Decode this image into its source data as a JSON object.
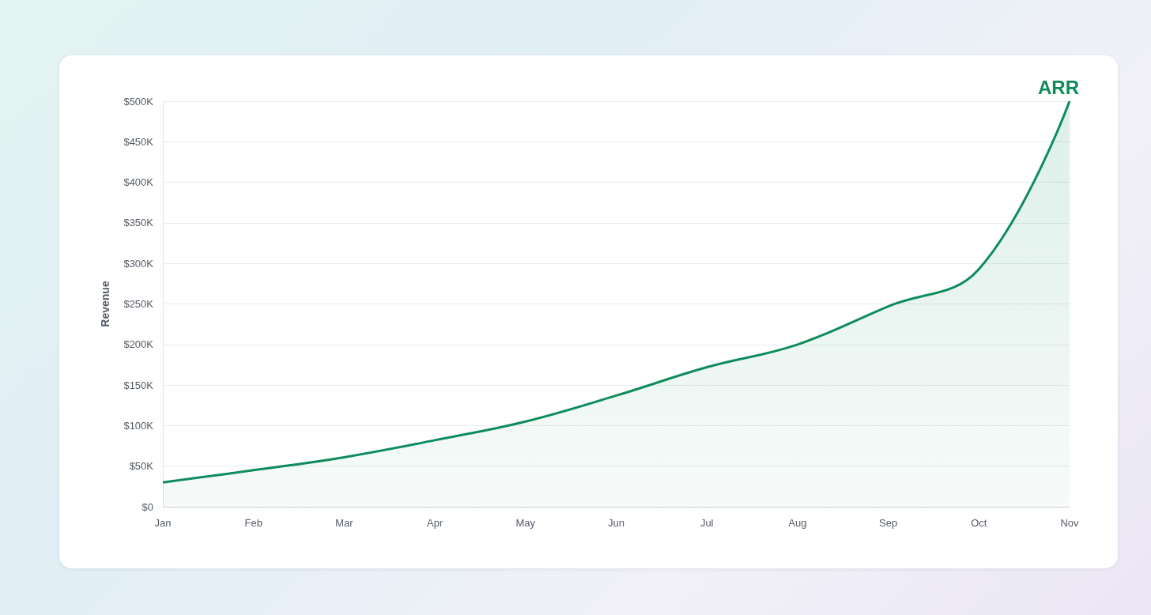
{
  "chart_data": {
    "type": "area",
    "ylabel": "Revenue",
    "categories": [
      "Jan",
      "Feb",
      "Mar",
      "Apr",
      "May",
      "Jun",
      "Jul",
      "Aug",
      "Sep",
      "Oct",
      "Nov"
    ],
    "series": [
      {
        "name": "ARR",
        "color": "#0e8c5c",
        "values": [
          30000,
          45000,
          61000,
          82000,
          105000,
          137000,
          172000,
          200000,
          247000,
          293000,
          500000
        ]
      }
    ],
    "ylim": [
      0,
      500000
    ],
    "yticks": [
      {
        "value": 0,
        "label": "$0"
      },
      {
        "value": 50000,
        "label": "$50K"
      },
      {
        "value": 100000,
        "label": "$100K"
      },
      {
        "value": 150000,
        "label": "$150K"
      },
      {
        "value": 200000,
        "label": "$200K"
      },
      {
        "value": 250000,
        "label": "$250K"
      },
      {
        "value": 300000,
        "label": "$300K"
      },
      {
        "value": 350000,
        "label": "$350K"
      },
      {
        "value": 400000,
        "label": "$400K"
      },
      {
        "value": 450000,
        "label": "$450K"
      },
      {
        "value": 500000,
        "label": "$500K"
      }
    ],
    "grid": "y",
    "legend": false
  }
}
